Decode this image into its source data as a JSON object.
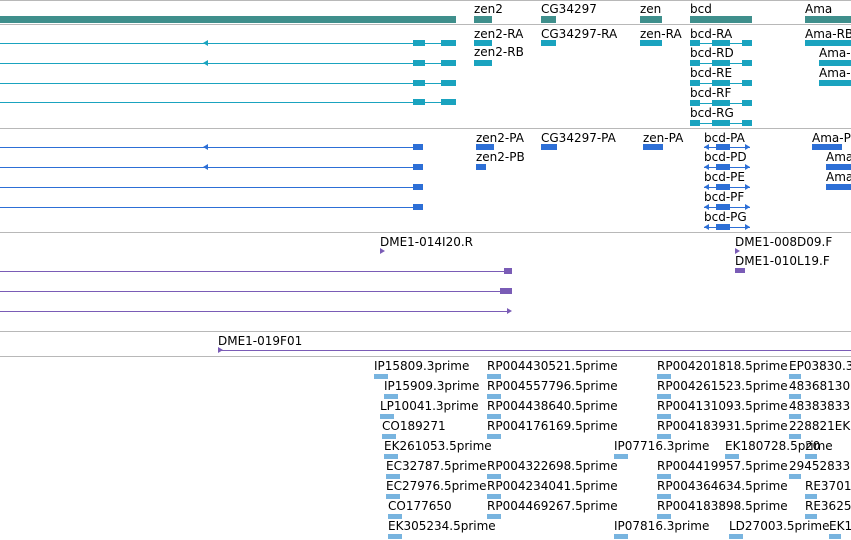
{
  "colors": {
    "gene": "#3f8f8c",
    "transcript": "#1aa3bf",
    "protein": "#2d6fd6",
    "clone": "#7a5cb6",
    "est": "#78b4df",
    "separator": "#b8b8b8"
  },
  "tracks": {
    "genes": {
      "labels": [
        "zen2",
        "CG34297",
        "zen",
        "bcd",
        "Ama"
      ]
    },
    "transcripts": {
      "labels": [
        "zen2-RA",
        "zen2-RB",
        "CG34297-RA",
        "zen-RA",
        "bcd-RA",
        "bcd-RD",
        "bcd-RE",
        "bcd-RF",
        "bcd-RG",
        "Ama-RB",
        "Ama-",
        "Ama-"
      ]
    },
    "proteins": {
      "labels": [
        "zen2-PA",
        "zen2-PB",
        "CG34297-PA",
        "zen-PA",
        "bcd-PA",
        "bcd-PD",
        "bcd-PE",
        "bcd-PF",
        "bcd-PG",
        "Ama-P",
        "Ama",
        "Ama"
      ]
    },
    "clones": {
      "labels": [
        "DME1-014I20.R",
        "DME1-008D09.F",
        "DME1-010L19.F"
      ]
    },
    "clone_single": {
      "labels": [
        "DME1-019F01"
      ]
    },
    "ests": {
      "labels": [
        "IP15809.3prime",
        "RP004430521.5prime",
        "RP004201818.5prime",
        "EP03830.3",
        "IP15909.3prime",
        "RP004557796.5prime",
        "RP004261523.5prime",
        "48368130",
        "LP10041.3prime",
        "RP004438640.5prime",
        "RP004131093.5prime",
        "48383833",
        "CO189271",
        "RP004176169.5prime",
        "RP004183931.5prime",
        "228821EK",
        "EK261053.5prime",
        "IP07716.3prime",
        "EK180728.5prime",
        "20",
        "EC32787.5prime",
        "RP004322698.5prime",
        "RP004419957.5prime",
        "29452833",
        "EC27976.5prime",
        "RP004234041.5prime",
        "RP004364634.5prime",
        "RE3701",
        "CO177650",
        "RP004469267.5prime",
        "RP004183898.5prime",
        "RE3625",
        "EK305234.5prime",
        "IP07816.3prime",
        "LD27003.5prime",
        "EK1"
      ]
    }
  }
}
